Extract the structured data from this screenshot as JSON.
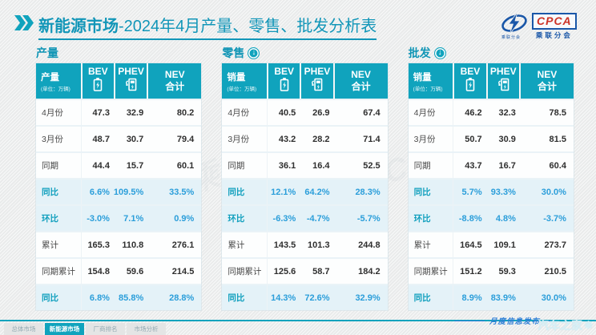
{
  "title": {
    "bold": "新能源市场",
    "rest": "-2024年4月产量、零售、批发分析表"
  },
  "logo": {
    "cpca": "CPCA",
    "subtitle": "乘联分会",
    "swoosh_caption": "乘联分会"
  },
  "colors": {
    "primary_teal": "#10A3BD",
    "title_teal": "#1296B8",
    "highlight_row_bg": "#E4F2F8",
    "highlight_value_blue": "#2B9EDA",
    "logo_blue": "#1A57A8",
    "logo_red": "#CC3327"
  },
  "tables": [
    {
      "section_title": "产量",
      "has_arrow": false,
      "header": {
        "label": "产量",
        "unit": "(单位：万辆)",
        "bev": "BEV",
        "phev": "PHEV",
        "nev_line1": "NEV",
        "nev_line2": "合计"
      },
      "rows": [
        {
          "label": "4月份",
          "type": "plain",
          "values": [
            "47.3",
            "32.9",
            "80.2"
          ]
        },
        {
          "label": "3月份",
          "type": "plain",
          "values": [
            "48.7",
            "30.7",
            "79.4"
          ]
        },
        {
          "label": "同期",
          "type": "plain",
          "values": [
            "44.4",
            "15.7",
            "60.1"
          ]
        },
        {
          "label": "同比",
          "type": "highlight",
          "values": [
            "6.6%",
            "109.5%",
            "33.5%"
          ]
        },
        {
          "label": "环比",
          "type": "highlight",
          "values": [
            "-3.0%",
            "7.1%",
            "0.9%"
          ]
        },
        {
          "label": "累计",
          "type": "plain",
          "values": [
            "165.3",
            "110.8",
            "276.1"
          ]
        },
        {
          "label": "同期累计",
          "type": "plain",
          "values": [
            "154.8",
            "59.6",
            "214.5"
          ]
        },
        {
          "label": "同比",
          "type": "highlight",
          "values": [
            "6.8%",
            "85.8%",
            "28.8%"
          ]
        }
      ]
    },
    {
      "section_title": "零售",
      "has_arrow": true,
      "header": {
        "label": "销量",
        "unit": "(单位：万辆)",
        "bev": "BEV",
        "phev": "PHEV",
        "nev_line1": "NEV",
        "nev_line2": "合计"
      },
      "rows": [
        {
          "label": "4月份",
          "type": "plain",
          "values": [
            "40.5",
            "26.9",
            "67.4"
          ]
        },
        {
          "label": "3月份",
          "type": "plain",
          "values": [
            "43.2",
            "28.2",
            "71.4"
          ]
        },
        {
          "label": "同期",
          "type": "plain",
          "values": [
            "36.1",
            "16.4",
            "52.5"
          ]
        },
        {
          "label": "同比",
          "type": "highlight",
          "values": [
            "12.1%",
            "64.2%",
            "28.3%"
          ]
        },
        {
          "label": "环比",
          "type": "highlight",
          "values": [
            "-6.3%",
            "-4.7%",
            "-5.7%"
          ]
        },
        {
          "label": "累计",
          "type": "plain",
          "values": [
            "143.5",
            "101.3",
            "244.8"
          ]
        },
        {
          "label": "同期累计",
          "type": "plain",
          "values": [
            "125.6",
            "58.7",
            "184.2"
          ]
        },
        {
          "label": "同比",
          "type": "highlight",
          "values": [
            "14.3%",
            "72.6%",
            "32.9%"
          ]
        }
      ]
    },
    {
      "section_title": "批发",
      "has_arrow": true,
      "header": {
        "label": "销量",
        "unit": "(单位：万辆)",
        "bev": "BEV",
        "phev": "PHEV",
        "nev_line1": "NEV",
        "nev_line2": "合计"
      },
      "rows": [
        {
          "label": "4月份",
          "type": "plain",
          "values": [
            "46.2",
            "32.3",
            "78.5"
          ]
        },
        {
          "label": "3月份",
          "type": "plain",
          "values": [
            "50.7",
            "30.9",
            "81.5"
          ]
        },
        {
          "label": "同期",
          "type": "plain",
          "values": [
            "43.7",
            "16.7",
            "60.4"
          ]
        },
        {
          "label": "同比",
          "type": "highlight",
          "values": [
            "5.7%",
            "93.3%",
            "30.0%"
          ]
        },
        {
          "label": "环比",
          "type": "highlight",
          "values": [
            "-8.8%",
            "4.8%",
            "-3.7%"
          ]
        },
        {
          "label": "累计",
          "type": "plain",
          "values": [
            "164.5",
            "109.1",
            "273.7"
          ]
        },
        {
          "label": "同期累计",
          "type": "plain",
          "values": [
            "151.2",
            "59.3",
            "210.5"
          ]
        },
        {
          "label": "同比",
          "type": "highlight",
          "values": [
            "8.9%",
            "83.9%",
            "30.0%"
          ]
        }
      ]
    }
  ],
  "footer": {
    "tabs": [
      {
        "label": "总体市场",
        "active": false
      },
      {
        "label": "新能源市场",
        "active": true
      },
      {
        "label": "厂商排名",
        "active": false
      },
      {
        "label": "市场分析",
        "active": false
      }
    ],
    "release_label": "月度信息发布",
    "watermark": "汽车之家"
  },
  "ghost_watermark": "CPCA 乘联分会"
}
